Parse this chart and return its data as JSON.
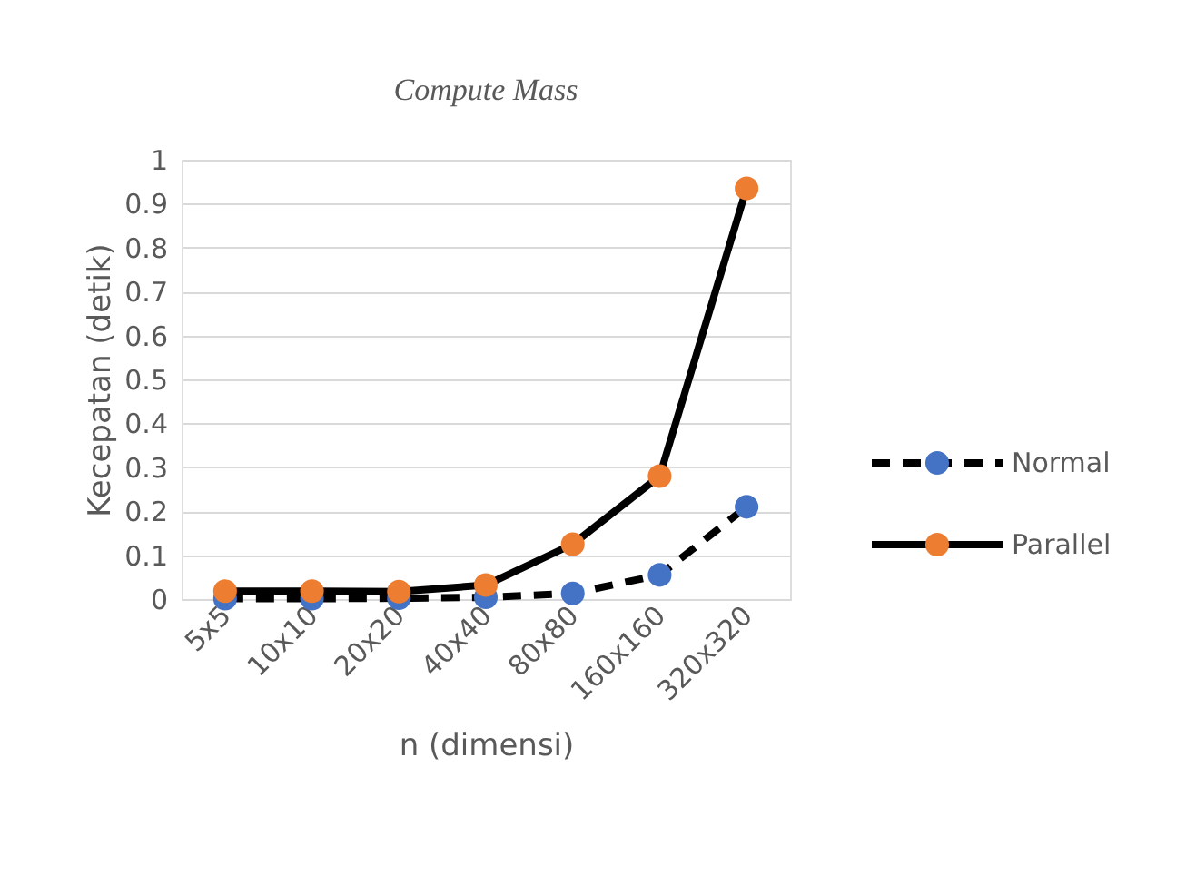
{
  "chart_data": {
    "type": "line",
    "title": "Compute Mass",
    "xlabel": "n (dimensi)",
    "ylabel": "Kecepatan (detik)",
    "categories": [
      "5x5",
      "10x10",
      "20x20",
      "40x40",
      "80x80",
      "160x160",
      "320x320"
    ],
    "series": [
      {
        "name": "Normal",
        "color": "#4472c4",
        "line_style": "dashed",
        "values": [
          0.001,
          0.001,
          0.002,
          0.004,
          0.013,
          0.055,
          0.21
        ]
      },
      {
        "name": "Parallel",
        "color": "#ed7d31",
        "line_style": "solid",
        "values": [
          0.018,
          0.018,
          0.017,
          0.032,
          0.125,
          0.28,
          0.935
        ]
      }
    ],
    "ylim": [
      0,
      1
    ],
    "yticks": [
      0,
      0.1,
      0.2,
      0.3,
      0.4,
      0.5,
      0.6,
      0.7,
      0.8,
      0.9,
      1
    ],
    "grid": "y",
    "legend": "right",
    "marker": "circle"
  }
}
